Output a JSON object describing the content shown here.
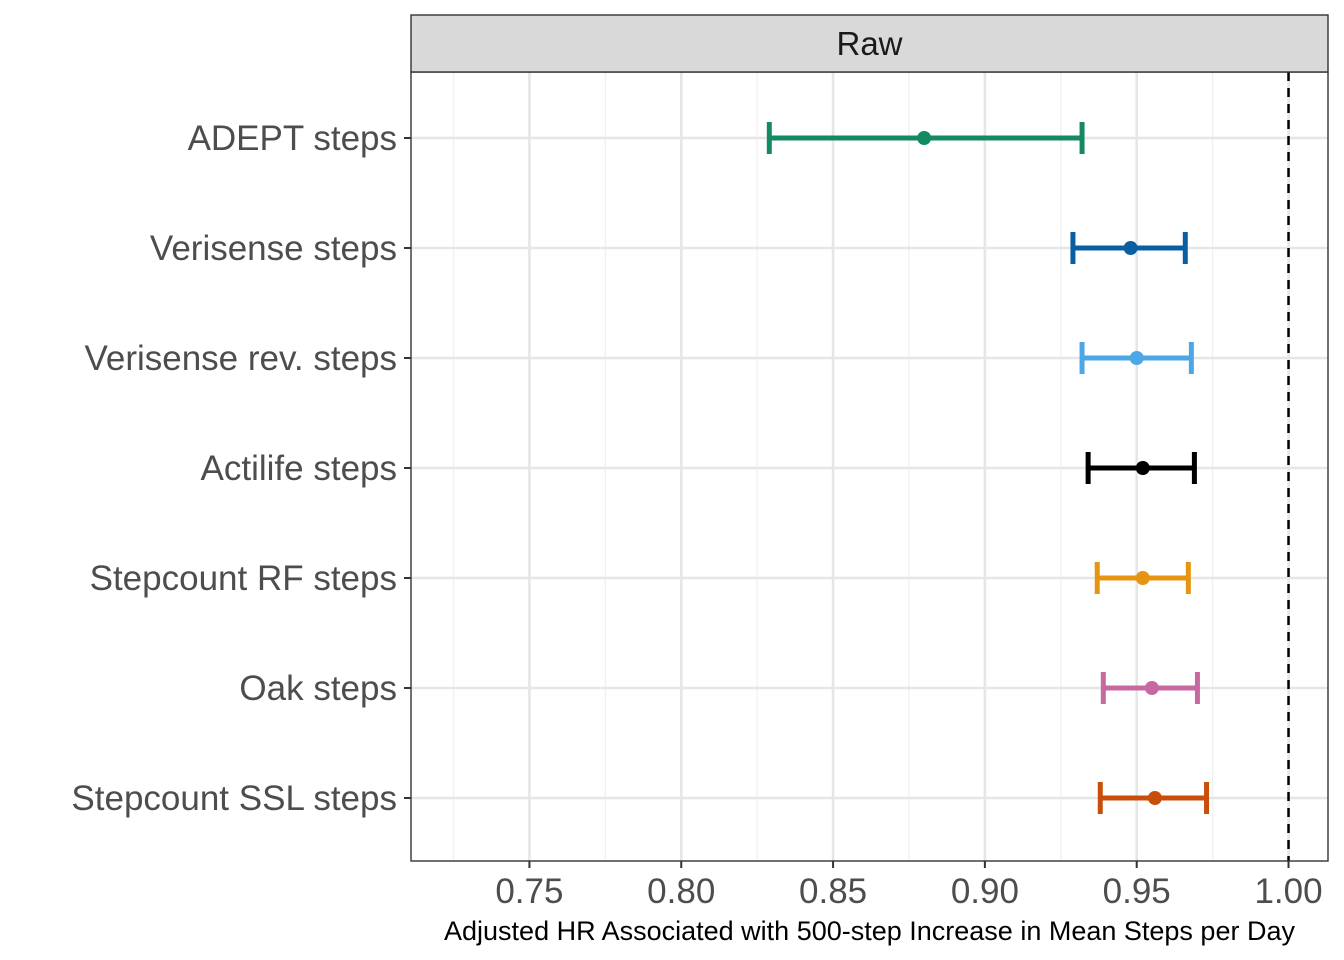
{
  "chart_data": {
    "type": "forest",
    "facet": "Raw",
    "xlabel": "Adjusted HR Associated with 500-step Increase in Mean Steps per Day",
    "ylabel": "",
    "xlim": [
      0.711,
      1.013
    ],
    "xticks": [
      "0.75",
      "0.80",
      "0.85",
      "0.90",
      "0.95",
      "1.00"
    ],
    "reference_line": 1.0,
    "grid": true,
    "series": [
      {
        "name": "ADEPT steps",
        "estimate": 0.88,
        "lower": 0.829,
        "upper": 0.932,
        "color": "#138a64"
      },
      {
        "name": "Verisense steps",
        "estimate": 0.948,
        "lower": 0.929,
        "upper": 0.966,
        "color": "#0a5fa3"
      },
      {
        "name": "Verisense rev. steps",
        "estimate": 0.95,
        "lower": 0.932,
        "upper": 0.968,
        "color": "#4da6e6"
      },
      {
        "name": "Actilife steps",
        "estimate": 0.952,
        "lower": 0.934,
        "upper": 0.969,
        "color": "#000000"
      },
      {
        "name": "Stepcount RF steps",
        "estimate": 0.952,
        "lower": 0.937,
        "upper": 0.967,
        "color": "#e69512"
      },
      {
        "name": "Oak steps",
        "estimate": 0.955,
        "lower": 0.939,
        "upper": 0.97,
        "color": "#c768a1"
      },
      {
        "name": "Stepcount SSL steps",
        "estimate": 0.956,
        "lower": 0.938,
        "upper": 0.973,
        "color": "#c94e0a"
      }
    ]
  }
}
